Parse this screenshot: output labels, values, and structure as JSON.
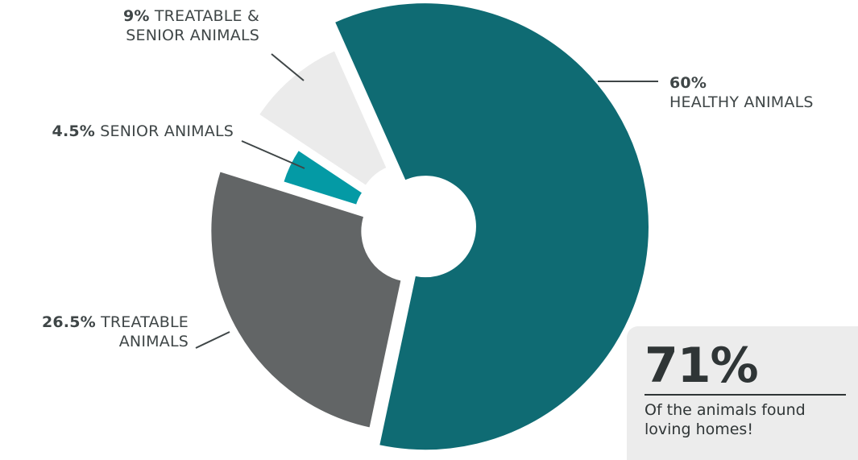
{
  "chart_data": {
    "type": "pie",
    "title": "",
    "slices": [
      {
        "label": "HEALTHY ANIMALS",
        "value": 60,
        "value_label": "60%",
        "color": "#0f6b73"
      },
      {
        "label": "TREATABLE ANIMALS",
        "value": 26.5,
        "value_label": "26.5%",
        "color": "#626566"
      },
      {
        "label": "SENIOR ANIMALS",
        "value": 4.5,
        "value_label": "4.5%",
        "color": "#049aa5"
      },
      {
        "label": "TREATABLE & SENIOR ANIMALS",
        "value": 9,
        "value_label": "9%",
        "color": "#ebebeb"
      }
    ],
    "donut_hole": true,
    "exploded_slices": true
  },
  "labels": {
    "treatable_senior": {
      "pct": "9%",
      "line1": " TREATABLE &",
      "line2": "SENIOR ANIMALS"
    },
    "senior": {
      "pct": "4.5%",
      "text": " SENIOR ANIMALS"
    },
    "treatable": {
      "pct": "26.5%",
      "line1": "  TREATABLE",
      "line2": "ANIMALS"
    },
    "healthy": {
      "pct": "60%",
      "line2": "HEALTHY ANIMALS"
    }
  },
  "stat": {
    "value": "71%",
    "caption": "Of the animals found loving homes!"
  },
  "colors": {
    "label_text": "#3f4647",
    "leader_line": "#3f4647",
    "stat_box_bg": "#ececec"
  }
}
